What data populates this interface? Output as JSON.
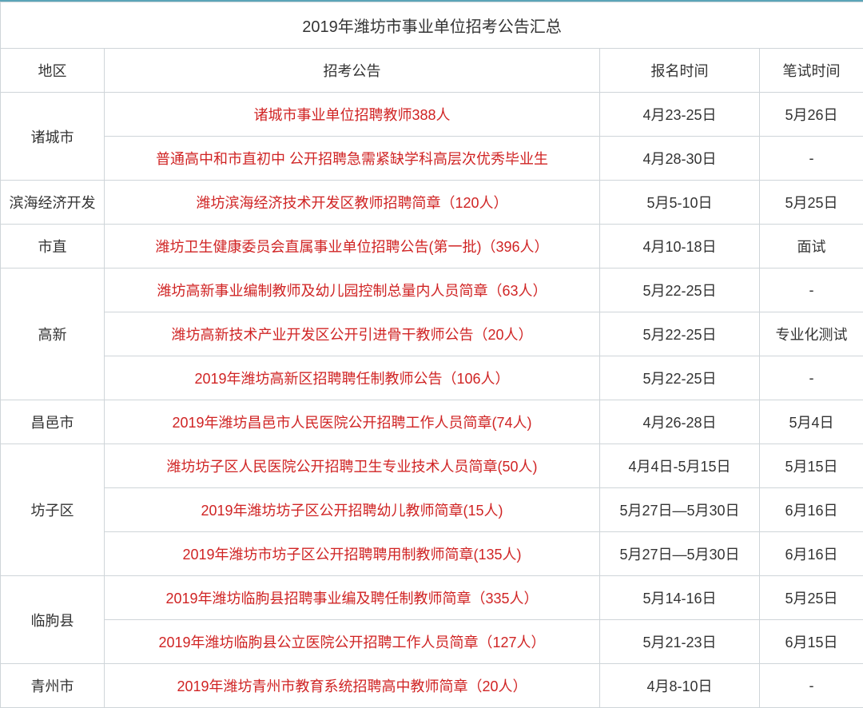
{
  "title": "2019年潍坊市事业单位招考公告汇总",
  "headers": {
    "region": "地区",
    "announcement": "招考公告",
    "apply_time": "报名时间",
    "exam_time": "笔试时间"
  },
  "colors": {
    "top_border": "#5ba5b8",
    "cell_border": "#cfd5d9",
    "text": "#333333",
    "link": "#d02424",
    "background": "#ffffff"
  },
  "font_sizes": {
    "title": 20,
    "cell": 18
  },
  "groups": [
    {
      "region": "诸城市",
      "rows": [
        {
          "announcement": "诸城市事业单位招聘教师388人",
          "apply": "4月23-25日",
          "exam": "5月26日"
        },
        {
          "announcement": "普通高中和市直初中 公开招聘急需紧缺学科高层次优秀毕业生",
          "apply": "4月28-30日",
          "exam": "-"
        }
      ]
    },
    {
      "region": "滨海经济开发",
      "rows": [
        {
          "announcement": "潍坊滨海经济技术开发区教师招聘简章（120人）",
          "apply": "5月5-10日",
          "exam": "5月25日"
        }
      ]
    },
    {
      "region": "市直",
      "rows": [
        {
          "announcement": "潍坊卫生健康委员会直属事业单位招聘公告(第一批)（396人）",
          "apply": "4月10-18日",
          "exam": "面试"
        }
      ]
    },
    {
      "region": "高新",
      "rows": [
        {
          "announcement": "潍坊高新事业编制教师及幼儿园控制总量内人员简章（63人）",
          "apply": "5月22-25日",
          "exam": "-"
        },
        {
          "announcement": "潍坊高新技术产业开发区公开引进骨干教师公告（20人）",
          "apply": "5月22-25日",
          "exam": "专业化测试"
        },
        {
          "announcement": "2019年潍坊高新区招聘聘任制教师公告（106人）",
          "apply": "5月22-25日",
          "exam": "-"
        }
      ]
    },
    {
      "region": "昌邑市",
      "rows": [
        {
          "announcement": "2019年潍坊昌邑市人民医院公开招聘工作人员简章(74人)",
          "apply": "4月26-28日",
          "exam": "5月4日"
        }
      ]
    },
    {
      "region": "坊子区",
      "rows": [
        {
          "announcement": "潍坊坊子区人民医院公开招聘卫生专业技术人员简章(50人)",
          "apply": "4月4日-5月15日",
          "exam": "5月15日"
        },
        {
          "announcement": "2019年潍坊坊子区公开招聘幼儿教师简章(15人)",
          "apply": "5月27日—5月30日",
          "exam": "6月16日"
        },
        {
          "announcement": "2019年潍坊市坊子区公开招聘聘用制教师简章(135人)",
          "apply": "5月27日—5月30日",
          "exam": "6月16日"
        }
      ]
    },
    {
      "region": "临朐县",
      "rows": [
        {
          "announcement": "2019年潍坊临朐县招聘事业编及聘任制教师简章（335人）",
          "apply": "5月14-16日",
          "exam": "5月25日"
        },
        {
          "announcement": "2019年潍坊临朐县公立医院公开招聘工作人员简章（127人）",
          "apply": "5月21-23日",
          "exam": "6月15日"
        }
      ]
    },
    {
      "region": "青州市",
      "rows": [
        {
          "announcement": "2019年潍坊青州市教育系统招聘高中教师简章（20人）",
          "apply": "4月8-10日",
          "exam": "-"
        }
      ]
    }
  ]
}
